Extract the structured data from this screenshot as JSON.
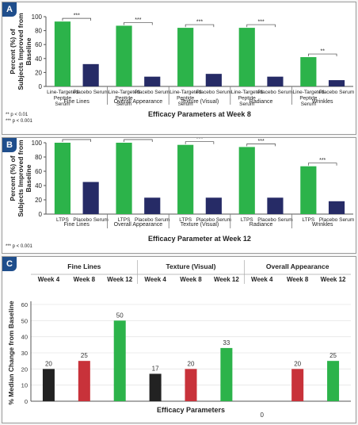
{
  "colors": {
    "ltps": "#2cb34a",
    "placebo": "#262b66",
    "black": "#222222",
    "red": "#c8323a",
    "green": "#2cb34a",
    "tag_bg": "#1f4e8c"
  },
  "chart_data": [
    {
      "panel_label": "A",
      "type": "bar",
      "title": "",
      "ylabel": "Percent (%) of Subjects Improved from Baseline",
      "xlabel": "Efficacy Parameters at Week 8",
      "ylim": [
        0,
        100
      ],
      "yticks": [
        0,
        20,
        40,
        60,
        80,
        100
      ],
      "groups": [
        "Fine Lines",
        "Overall Appearance",
        "Texture (Visual)",
        "Radiance",
        "Wrinkles"
      ],
      "series": [
        {
          "name": "Line-Targeted Peptide Serum",
          "color": "ltps",
          "values": [
            93,
            87,
            84,
            84,
            42
          ]
        },
        {
          "name": "Placebo Serum",
          "color": "placebo",
          "values": [
            32,
            14,
            18,
            14,
            9
          ]
        }
      ],
      "bar_labels": [
        "Line-Targeted Peptide Serum",
        "Placebo Serum"
      ],
      "significance": [
        "***",
        "***",
        "***",
        "***",
        "**"
      ],
      "footnotes": [
        "** p < 0.01",
        "*** p < 0.001"
      ]
    },
    {
      "panel_label": "B",
      "type": "bar",
      "title": "",
      "ylabel": "Percent (%) of Subjects Improved from Baseline",
      "xlabel": "Efficacy Parameter at Week 12",
      "ylim": [
        0,
        100
      ],
      "yticks": [
        0,
        20,
        40,
        60,
        80,
        100
      ],
      "groups": [
        "Fine Lines",
        "Overall Appearance",
        "Texture (Visual)",
        "Radiance",
        "Wrinkles"
      ],
      "series": [
        {
          "name": "LTPS",
          "color": "ltps",
          "values": [
            100,
            100,
            97,
            94,
            67
          ]
        },
        {
          "name": "Placebo Serum",
          "color": "placebo",
          "values": [
            45,
            23,
            23,
            23,
            18
          ]
        }
      ],
      "bar_labels": [
        "LTPS",
        "Placebo Serum"
      ],
      "significance": [
        "***",
        "***",
        "***",
        "***",
        "***"
      ],
      "footnotes": [
        "*** p < 0.001"
      ]
    },
    {
      "panel_label": "C",
      "type": "bar",
      "title": "",
      "ylabel": "% Median Change from Baseline",
      "xlabel": "Efficacy Parameters",
      "ylim": [
        0,
        60
      ],
      "yticks": [
        0,
        10,
        20,
        30,
        40,
        50,
        60
      ],
      "group_headers": [
        "Fine Lines",
        "Texture (Visual)",
        "Overall Appearance"
      ],
      "week_labels": [
        "Week 4",
        "Week 8",
        "Week 12"
      ],
      "week_colors": [
        "black",
        "red",
        "green"
      ],
      "values": [
        [
          20,
          25,
          50
        ],
        [
          17,
          20,
          33
        ],
        [
          0,
          20,
          25
        ]
      ],
      "data_labels": [
        [
          "20",
          "25",
          "50"
        ],
        [
          "17",
          "20",
          "33"
        ],
        [
          "0",
          "20",
          "25"
        ]
      ]
    }
  ]
}
